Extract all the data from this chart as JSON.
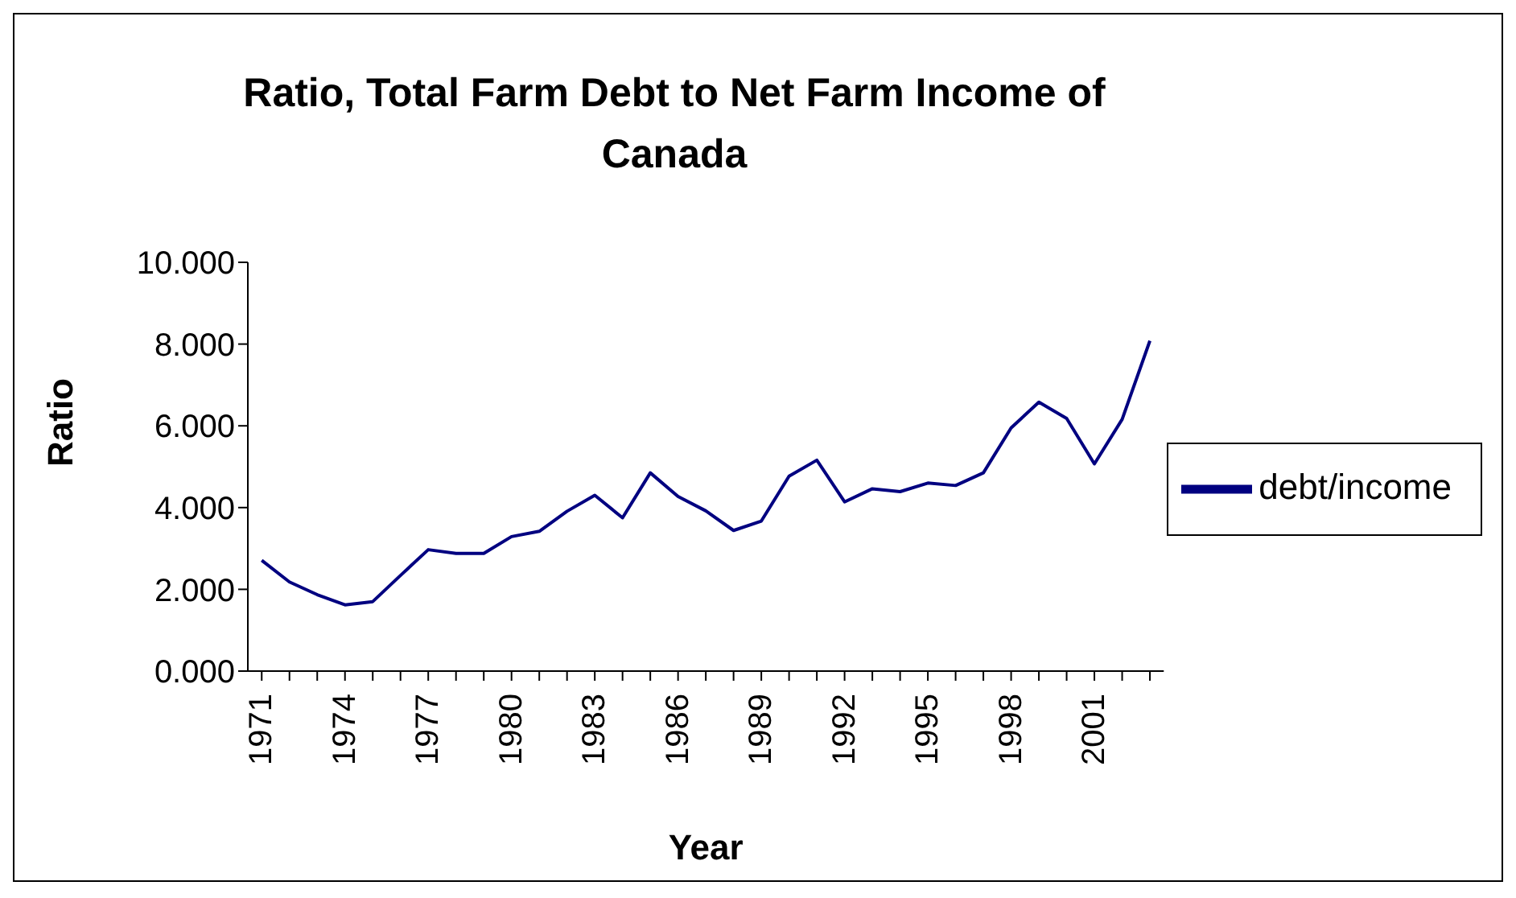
{
  "chart_data": {
    "type": "line",
    "title": "Ratio, Total Farm Debt to Net Farm Income of Canada",
    "xlabel": "Year",
    "ylabel": "Ratio",
    "categories": [
      "1971",
      null,
      null,
      "1974",
      null,
      null,
      "1977",
      null,
      null,
      "1980",
      null,
      null,
      "1983",
      null,
      null,
      "1986",
      null,
      null,
      "1989",
      null,
      null,
      "1992",
      null,
      null,
      "1995",
      null,
      null,
      "1998",
      null,
      null,
      "2001",
      null,
      null
    ],
    "series": [
      {
        "name": "debt/income",
        "color": "#000080",
        "values": [
          2.71,
          2.18,
          1.87,
          1.62,
          1.7,
          2.34,
          2.97,
          2.88,
          2.88,
          3.29,
          3.42,
          3.91,
          4.3,
          3.75,
          4.85,
          4.27,
          3.92,
          3.44,
          3.67,
          4.77,
          5.16,
          4.14,
          4.46,
          4.39,
          4.6,
          4.54,
          4.85,
          5.95,
          6.58,
          6.18,
          5.07,
          6.16,
          8.08
        ]
      }
    ],
    "ylim": [
      0,
      10
    ],
    "yticks": [
      {
        "value": 0,
        "label": "0.000"
      },
      {
        "value": 2,
        "label": "2.000"
      },
      {
        "value": 4,
        "label": "4.000"
      },
      {
        "value": 6,
        "label": "6.000"
      },
      {
        "value": 8,
        "label": "8.000"
      },
      {
        "value": 10,
        "label": "10.000"
      }
    ],
    "grid": false,
    "legend": "right",
    "marker": "none",
    "line_style": "solid"
  }
}
